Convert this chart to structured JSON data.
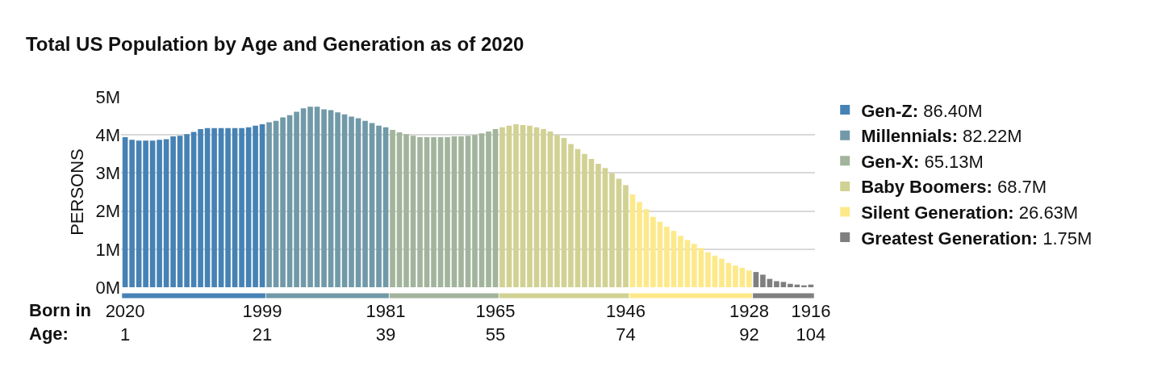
{
  "chart_data": {
    "type": "bar",
    "title": "Total US Population by Age and Generation as of 2020",
    "ylabel": "PERSONS",
    "categories": [
      "2020\n1",
      null,
      null,
      null,
      null,
      null,
      null,
      null,
      null,
      null,
      null,
      null,
      null,
      null,
      null,
      null,
      null,
      null,
      null,
      null,
      "1999\n21",
      null,
      null,
      null,
      null,
      null,
      null,
      null,
      null,
      null,
      null,
      null,
      null,
      null,
      null,
      null,
      null,
      null,
      "1981\n39",
      null,
      null,
      null,
      null,
      null,
      null,
      null,
      null,
      null,
      null,
      null,
      null,
      null,
      null,
      null,
      "1965\n55",
      null,
      null,
      null,
      null,
      null,
      null,
      null,
      null,
      null,
      null,
      null,
      null,
      null,
      null,
      null,
      null,
      null,
      null,
      "1946\n74",
      null,
      null,
      null,
      null,
      null,
      null,
      null,
      null,
      null,
      null,
      null,
      null,
      null,
      null,
      null,
      null,
      null,
      "1928\n92",
      null,
      null,
      null,
      null,
      null,
      null,
      null,
      null,
      "1916\n104"
    ],
    "series": [
      {
        "name": "Gen-Z: 86.40M",
        "color": "#4682b4",
        "values": [
          3.94,
          3.87,
          3.85,
          3.85,
          3.85,
          3.87,
          3.89,
          3.96,
          3.98,
          4.02,
          4.08,
          4.15,
          4.18,
          4.18,
          4.18,
          4.18,
          4.18,
          4.18,
          4.2,
          4.24,
          4.28,
          null,
          null,
          null,
          null,
          null,
          null,
          null,
          null,
          null,
          null,
          null,
          null,
          null,
          null,
          null,
          null,
          null,
          null,
          null,
          null,
          null,
          null,
          null,
          null,
          null,
          null,
          null,
          null,
          null,
          null,
          null,
          null,
          null,
          null,
          null,
          null,
          null,
          null,
          null,
          null,
          null,
          null,
          null,
          null,
          null,
          null,
          null,
          null,
          null,
          null,
          null,
          null,
          null,
          null,
          null,
          null,
          null,
          null,
          null,
          null,
          null,
          null,
          null,
          null,
          null,
          null,
          null,
          null,
          null,
          null,
          null,
          null,
          null,
          null,
          null,
          null,
          null,
          null,
          null,
          null
        ]
      },
      {
        "name": "Millennials: 82.22M",
        "color": "#7199a8",
        "values": [
          null,
          null,
          null,
          null,
          null,
          null,
          null,
          null,
          null,
          null,
          null,
          null,
          null,
          null,
          null,
          null,
          null,
          null,
          null,
          null,
          null,
          4.33,
          4.37,
          4.46,
          4.52,
          4.61,
          4.7,
          4.74,
          4.74,
          4.67,
          4.65,
          4.59,
          4.54,
          4.48,
          4.44,
          4.37,
          4.31,
          4.24,
          4.2,
          null,
          null,
          null,
          null,
          null,
          null,
          null,
          null,
          null,
          null,
          null,
          null,
          null,
          null,
          null,
          null,
          null,
          null,
          null,
          null,
          null,
          null,
          null,
          null,
          null,
          null,
          null,
          null,
          null,
          null,
          null,
          null,
          null,
          null,
          null,
          null,
          null,
          null,
          null,
          null,
          null,
          null,
          null,
          null,
          null,
          null,
          null,
          null,
          null,
          null,
          null,
          null,
          null,
          null,
          null,
          null,
          null,
          null,
          null,
          null,
          null,
          null
        ]
      },
      {
        "name": "Gen-X: 65.13M",
        "color": "#a2b49c",
        "values": [
          null,
          null,
          null,
          null,
          null,
          null,
          null,
          null,
          null,
          null,
          null,
          null,
          null,
          null,
          null,
          null,
          null,
          null,
          null,
          null,
          null,
          null,
          null,
          null,
          null,
          null,
          null,
          null,
          null,
          null,
          null,
          null,
          null,
          null,
          null,
          null,
          null,
          null,
          null,
          4.13,
          4.07,
          4.02,
          3.98,
          3.94,
          3.94,
          3.94,
          3.94,
          3.94,
          3.96,
          3.96,
          3.98,
          4.0,
          4.04,
          4.09,
          4.15,
          null,
          null,
          null,
          null,
          null,
          null,
          null,
          null,
          null,
          null,
          null,
          null,
          null,
          null,
          null,
          null,
          null,
          null,
          null,
          null,
          null,
          null,
          null,
          null,
          null,
          null,
          null,
          null,
          null,
          null,
          null,
          null,
          null,
          null,
          null,
          null,
          null,
          null,
          null,
          null,
          null,
          null,
          null,
          null,
          null,
          null
        ]
      },
      {
        "name": "Baby Boomers: 68.7M",
        "color": "#d1d194",
        "values": [
          null,
          null,
          null,
          null,
          null,
          null,
          null,
          null,
          null,
          null,
          null,
          null,
          null,
          null,
          null,
          null,
          null,
          null,
          null,
          null,
          null,
          null,
          null,
          null,
          null,
          null,
          null,
          null,
          null,
          null,
          null,
          null,
          null,
          null,
          null,
          null,
          null,
          null,
          null,
          null,
          null,
          null,
          null,
          null,
          null,
          null,
          null,
          null,
          null,
          null,
          null,
          null,
          null,
          null,
          null,
          4.2,
          4.24,
          4.28,
          4.26,
          4.24,
          4.2,
          4.15,
          4.09,
          4.0,
          3.92,
          3.76,
          3.63,
          3.5,
          3.37,
          3.24,
          3.13,
          3.0,
          2.85,
          2.68,
          null,
          null,
          null,
          null,
          null,
          null,
          null,
          null,
          null,
          null,
          null,
          null,
          null,
          null,
          null,
          null,
          null,
          null,
          null,
          null,
          null,
          null,
          null,
          null,
          null,
          null,
          null
        ]
      },
      {
        "name": "Silent Generation: 26.63M",
        "color": "#fde98a",
        "values": [
          null,
          null,
          null,
          null,
          null,
          null,
          null,
          null,
          null,
          null,
          null,
          null,
          null,
          null,
          null,
          null,
          null,
          null,
          null,
          null,
          null,
          null,
          null,
          null,
          null,
          null,
          null,
          null,
          null,
          null,
          null,
          null,
          null,
          null,
          null,
          null,
          null,
          null,
          null,
          null,
          null,
          null,
          null,
          null,
          null,
          null,
          null,
          null,
          null,
          null,
          null,
          null,
          null,
          null,
          null,
          null,
          null,
          null,
          null,
          null,
          null,
          null,
          null,
          null,
          null,
          null,
          null,
          null,
          null,
          null,
          null,
          null,
          null,
          null,
          2.44,
          2.24,
          2.05,
          1.85,
          1.72,
          1.59,
          1.48,
          1.35,
          1.24,
          1.14,
          1.03,
          0.92,
          0.83,
          0.75,
          0.64,
          0.57,
          0.51,
          0.44,
          null,
          null,
          null,
          null,
          null,
          null,
          null,
          null,
          null
        ]
      },
      {
        "name": "Greatest Generation: 1.75M",
        "color": "#7f7f7f",
        "values": [
          null,
          null,
          null,
          null,
          null,
          null,
          null,
          null,
          null,
          null,
          null,
          null,
          null,
          null,
          null,
          null,
          null,
          null,
          null,
          null,
          null,
          null,
          null,
          null,
          null,
          null,
          null,
          null,
          null,
          null,
          null,
          null,
          null,
          null,
          null,
          null,
          null,
          null,
          null,
          null,
          null,
          null,
          null,
          null,
          null,
          null,
          null,
          null,
          null,
          null,
          null,
          null,
          null,
          null,
          null,
          null,
          null,
          null,
          null,
          null,
          null,
          null,
          null,
          null,
          null,
          null,
          null,
          null,
          null,
          null,
          null,
          null,
          null,
          null,
          null,
          null,
          null,
          null,
          null,
          null,
          null,
          null,
          null,
          null,
          null,
          null,
          null,
          null,
          null,
          null,
          null,
          null,
          0.4,
          0.33,
          0.22,
          0.16,
          0.14,
          0.09,
          0.07,
          0.05,
          0.07
        ]
      }
    ],
    "ylim": [
      0,
      5
    ],
    "yticks": [
      {
        "value": 0,
        "label": "0M"
      },
      {
        "value": 1,
        "label": "1M"
      },
      {
        "value": 2,
        "label": "2M"
      },
      {
        "value": 3,
        "label": "3M"
      },
      {
        "value": 4,
        "label": "4M"
      },
      {
        "value": 5,
        "label": "5M"
      }
    ],
    "grid": "y",
    "legend": "right",
    "annotations": [
      "Born in\nAge:"
    ]
  }
}
